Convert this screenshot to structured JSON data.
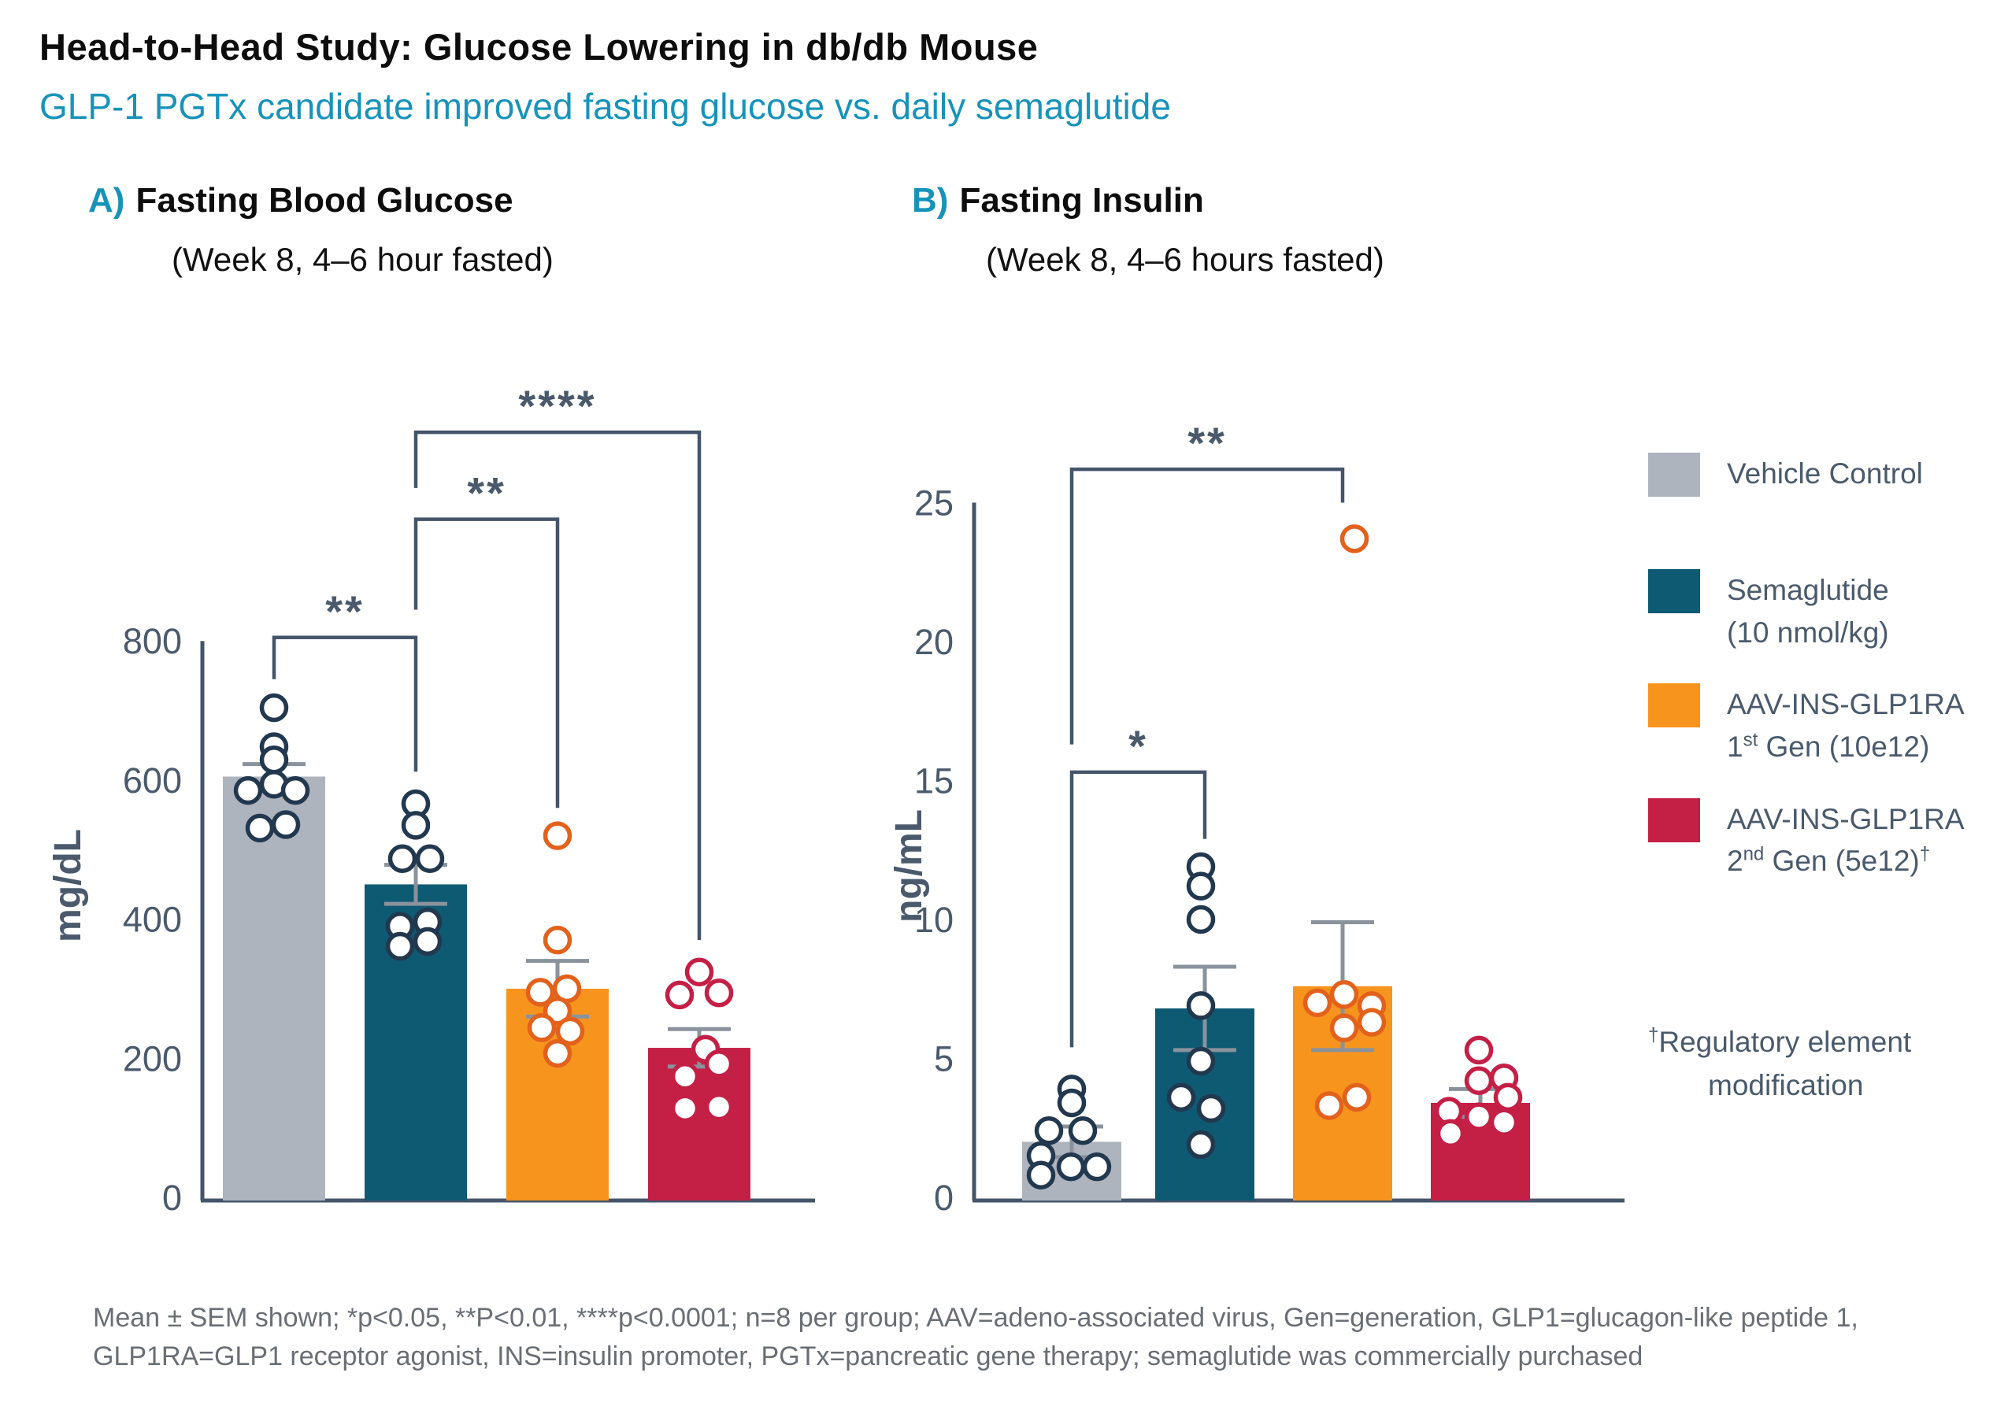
{
  "header": {
    "title": "Head-to-Head Study: Glucose Lowering in db/db Mouse",
    "subtitle": "GLP-1 PGTx candidate improved fasting glucose vs. daily semaglutide"
  },
  "colors": {
    "accent": "#1793BA",
    "slate_text": "#4A5A6C",
    "axis_line": "#44546A",
    "error_bar": "#8A929C",
    "footnote_text": "#696E74",
    "vehicle": "#AEB4BE",
    "semaglutide": "#0E5A72",
    "aav_gen1": "#F6941E",
    "aav_gen2": "#C41F45",
    "point_dark_outline": "#22384E",
    "point_orange_outline": "#E2611C",
    "point_red_outline": "#C41F45"
  },
  "panels": [
    {
      "label": "A)",
      "title": "Fasting Blood Glucose",
      "subtitle": "(Week 8, 4–6 hour fasted)"
    },
    {
      "label": "B)",
      "title": "Fasting Insulin",
      "subtitle": "(Week 8, 4–6 hours fasted)"
    }
  ],
  "chart_data": [
    {
      "type": "bar",
      "title": "Fasting Blood Glucose (Week 8, 4–6 hour fasted)",
      "xlabel": "",
      "ylabel": "mg/dL",
      "ylim": [
        0,
        800
      ],
      "yticks": [
        0,
        200,
        400,
        600,
        800
      ],
      "grid": false,
      "categories": [
        "Vehicle Control",
        "Semaglutide (10 nmol/kg)",
        "AAV-INS-GLP1RA 1st Gen (10e12)",
        "AAV-INS-GLP1RA 2nd Gen (5e12)"
      ],
      "series": [
        {
          "name": "mean",
          "values": [
            605,
            450,
            300,
            215
          ]
        },
        {
          "name": "sem",
          "values": [
            18,
            28,
            40,
            27
          ]
        }
      ],
      "points": [
        [
          {
            "dx": 0,
            "v": 704
          },
          {
            "dx": 0,
            "v": 648
          },
          {
            "dx": 0,
            "v": 629
          },
          {
            "dx": -33,
            "v": 585
          },
          {
            "dx": 0,
            "v": 594
          },
          {
            "dx": 27,
            "v": 585
          },
          {
            "dx": -18,
            "v": 531
          },
          {
            "dx": 15,
            "v": 536
          }
        ],
        [
          {
            "dx": 0,
            "v": 566
          },
          {
            "dx": 0,
            "v": 535
          },
          {
            "dx": -17,
            "v": 487
          },
          {
            "dx": 18,
            "v": 487
          },
          {
            "dx": -20,
            "v": 390
          },
          {
            "dx": 15,
            "v": 396
          },
          {
            "dx": -20,
            "v": 361
          },
          {
            "dx": 15,
            "v": 368
          }
        ],
        [
          {
            "dx": 0,
            "v": 520
          },
          {
            "dx": 0,
            "v": 370
          },
          {
            "dx": -22,
            "v": 295
          },
          {
            "dx": 12,
            "v": 300
          },
          {
            "dx": 0,
            "v": 268
          },
          {
            "dx": -20,
            "v": 244
          },
          {
            "dx": 16,
            "v": 239
          },
          {
            "dx": 0,
            "v": 207
          }
        ],
        [
          {
            "dx": 0,
            "v": 324
          },
          {
            "dx": -25,
            "v": 291
          },
          {
            "dx": 25,
            "v": 294
          },
          {
            "dx": 8,
            "v": 213
          },
          {
            "dx": 25,
            "v": 192
          },
          {
            "dx": -18,
            "v": 174
          },
          {
            "dx": -18,
            "v": 128
          },
          {
            "dx": 25,
            "v": 130
          }
        ]
      ],
      "significance": [
        {
          "groups": [
            0,
            1
          ],
          "label": "**",
          "bracket_y": 805,
          "leg_ends": [
            745,
            612
          ]
        },
        {
          "groups": [
            1,
            2
          ],
          "label": "**",
          "bracket_y": 975,
          "leg_ends": [
            845,
            560
          ]
        },
        {
          "groups": [
            1,
            3
          ],
          "label": "****",
          "bracket_y": 1100,
          "leg_ends": [
            1020,
            370
          ]
        }
      ]
    },
    {
      "type": "bar",
      "title": "Fasting Insulin (Week 8, 4–6 hours fasted)",
      "xlabel": "",
      "ylabel": "ng/mL",
      "ylim": [
        0,
        25
      ],
      "yticks": [
        0,
        5,
        10,
        15,
        20,
        25
      ],
      "grid": false,
      "categories": [
        "Vehicle Control",
        "Semaglutide (10 nmol/kg)",
        "AAV-INS-GLP1RA 1st Gen (10e12)",
        "AAV-INS-GLP1RA 2nd Gen (5e12)"
      ],
      "series": [
        {
          "name": "mean",
          "values": [
            2.0,
            6.8,
            7.6,
            3.4
          ]
        },
        {
          "name": "sem",
          "values": [
            0.55,
            1.5,
            2.3,
            0.5
          ]
        }
      ],
      "points": [
        [
          {
            "dx": 0,
            "v": 3.9
          },
          {
            "dx": 0,
            "v": 3.4
          },
          {
            "dx": -29,
            "v": 2.4
          },
          {
            "dx": 14,
            "v": 2.4
          },
          {
            "dx": -39,
            "v": 1.5
          },
          {
            "dx": -1,
            "v": 1.1
          },
          {
            "dx": 32,
            "v": 1.1
          },
          {
            "dx": -39,
            "v": 0.8
          }
        ],
        [
          {
            "dx": -5,
            "v": 11.9
          },
          {
            "dx": -5,
            "v": 11.2
          },
          {
            "dx": -5,
            "v": 10.0
          },
          {
            "dx": -5,
            "v": 6.9
          },
          {
            "dx": -5,
            "v": 4.9
          },
          {
            "dx": -30,
            "v": 3.6
          },
          {
            "dx": 8,
            "v": 3.2
          },
          {
            "dx": -5,
            "v": 1.9
          }
        ],
        [
          {
            "dx": 15,
            "v": 23.7
          },
          {
            "dx": 2,
            "v": 7.3
          },
          {
            "dx": -32,
            "v": 7.0
          },
          {
            "dx": 37,
            "v": 6.9
          },
          {
            "dx": 37,
            "v": 6.3
          },
          {
            "dx": 2,
            "v": 6.1
          },
          {
            "dx": 18,
            "v": 3.6
          },
          {
            "dx": -17,
            "v": 3.3
          }
        ],
        [
          {
            "dx": -2,
            "v": 5.3
          },
          {
            "dx": 30,
            "v": 4.3
          },
          {
            "dx": -2,
            "v": 4.2
          },
          {
            "dx": 35,
            "v": 3.6
          },
          {
            "dx": -40,
            "v": 3.1
          },
          {
            "dx": -2,
            "v": 2.9
          },
          {
            "dx": 30,
            "v": 2.7
          },
          {
            "dx": -38,
            "v": 2.3
          }
        ]
      ],
      "significance": [
        {
          "groups": [
            0,
            1
          ],
          "label": "*",
          "bracket_y": 15.3,
          "leg_ends": [
            5.4,
            12.9
          ]
        },
        {
          "groups": [
            0,
            2
          ],
          "label": "**",
          "bracket_y": 26.2,
          "leg_ends": [
            16.3,
            25.0
          ]
        }
      ]
    }
  ],
  "legend": {
    "items": [
      {
        "color_key": "vehicle",
        "name": "vehicle-control",
        "lines": [
          [
            {
              "t": "Vehicle Control"
            }
          ]
        ]
      },
      {
        "color_key": "semaglutide",
        "name": "semaglutide",
        "lines": [
          [
            {
              "t": "Semaglutide"
            }
          ],
          [
            {
              "t": "(10 nmol/kg)"
            }
          ]
        ]
      },
      {
        "color_key": "aav_gen1",
        "name": "aav-ins-glp1ra-1st-gen",
        "lines": [
          [
            {
              "t": "AAV-INS-GLP1RA"
            }
          ],
          [
            {
              "t": "1"
            },
            {
              "t": "st",
              "sup": true
            },
            {
              "t": " Gen (10e12)"
            }
          ]
        ]
      },
      {
        "color_key": "aav_gen2",
        "name": "aav-ins-glp1ra-2nd-gen",
        "lines": [
          [
            {
              "t": "AAV-INS-GLP1RA"
            }
          ],
          [
            {
              "t": "2"
            },
            {
              "t": "nd",
              "sup": true
            },
            {
              "t": " Gen (5e12)"
            },
            {
              "t": "†",
              "sup": true
            }
          ]
        ]
      }
    ],
    "note_lines": [
      [
        {
          "t": "†",
          "sup": true
        },
        {
          "t": "Regulatory element"
        }
      ],
      [
        {
          "t": "modification"
        }
      ]
    ]
  },
  "footnote": {
    "line1": "Mean ± SEM shown; *p<0.05, **P<0.01, ****p<0.0001; n=8 per group; AAV=adeno-associated virus, Gen=generation, GLP1=glucagon-like peptide 1,",
    "line2": "GLP1RA=GLP1 receptor agonist, INS=insulin promoter, PGTx=pancreatic gene therapy; semaglutide was commercially purchased"
  }
}
